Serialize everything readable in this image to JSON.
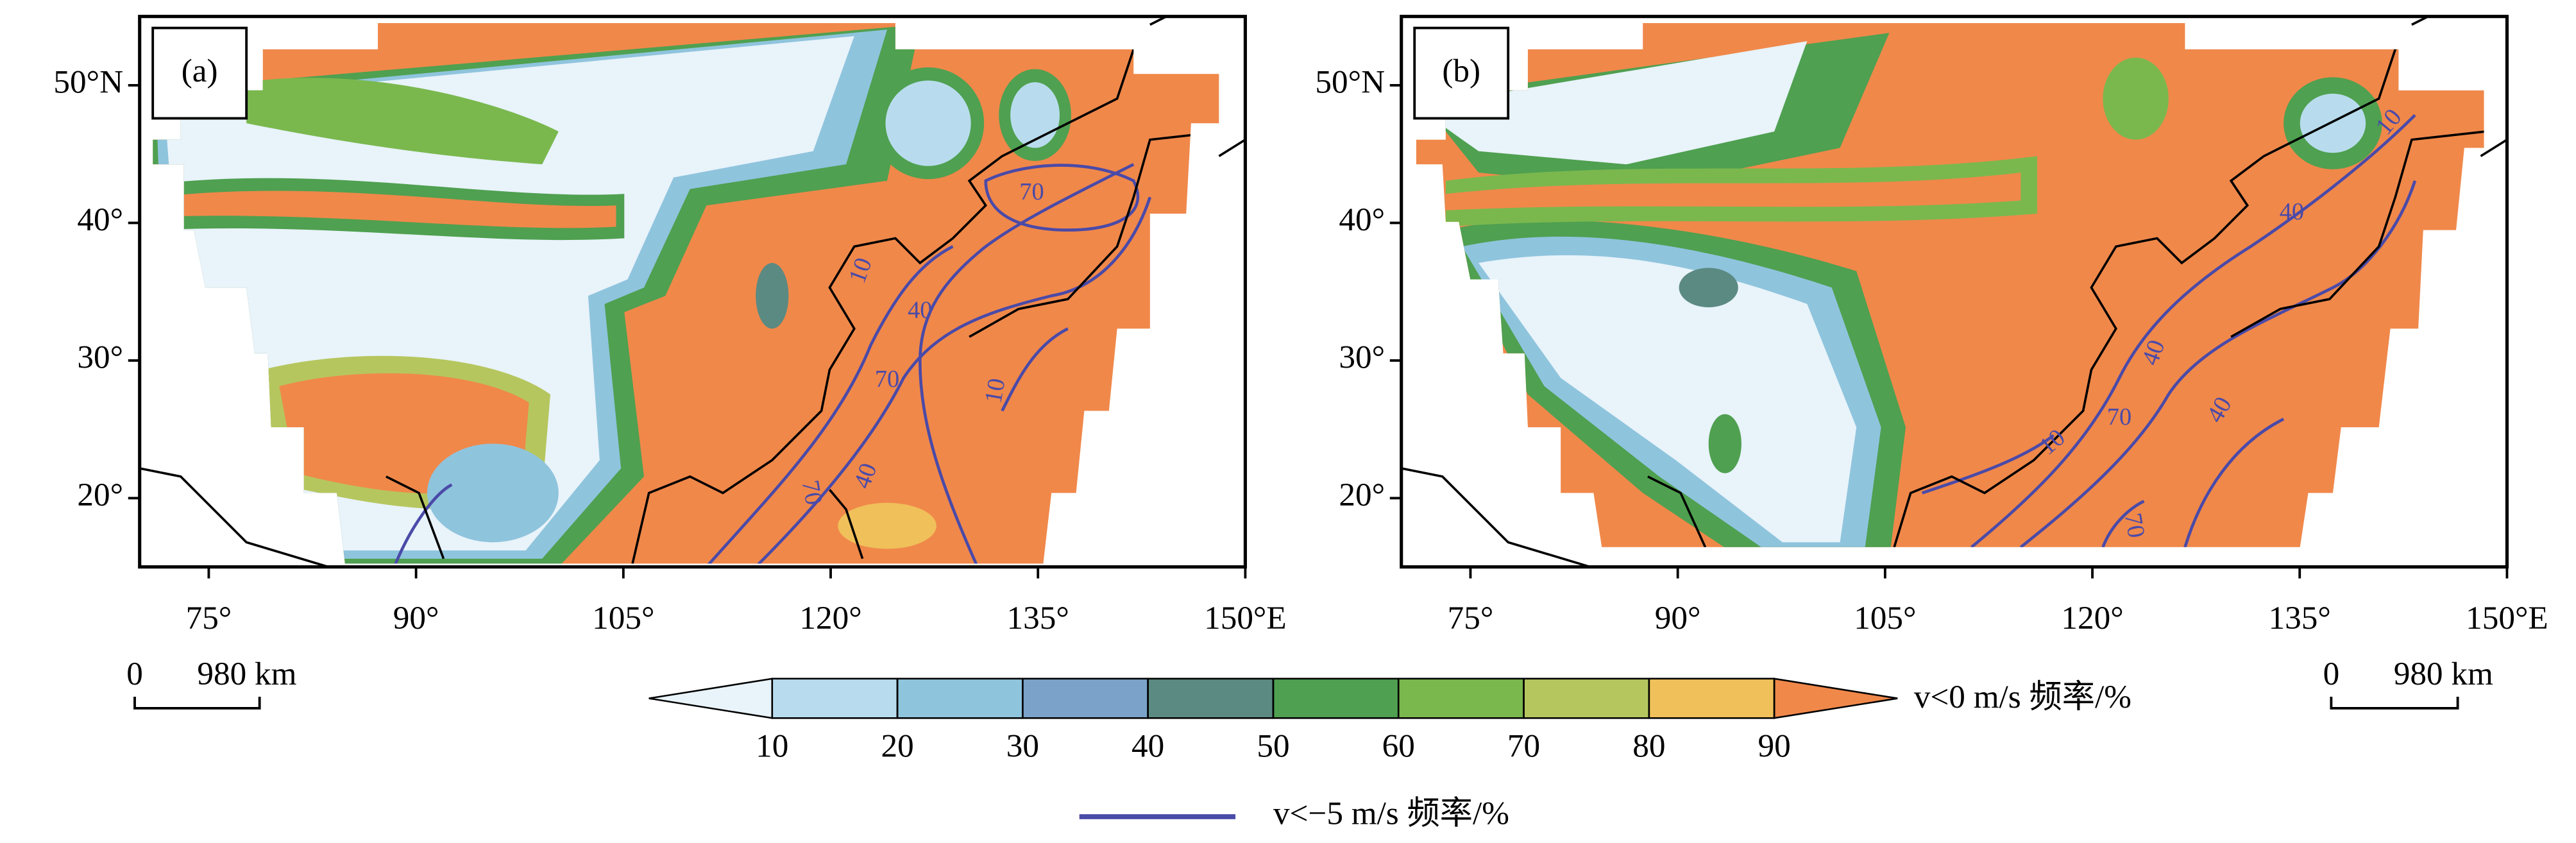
{
  "map": {
    "xlim": [
      70,
      150
    ],
    "ylim": [
      15,
      55
    ],
    "xticks": [
      {
        "value": 75,
        "label": "75°"
      },
      {
        "value": 90,
        "label": "90°"
      },
      {
        "value": 105,
        "label": "105°"
      },
      {
        "value": 120,
        "label": "120°"
      },
      {
        "value": 135,
        "label": "135°"
      },
      {
        "value": 150,
        "label": "150°E"
      }
    ],
    "yticks": [
      {
        "value": 20,
        "label": "20°"
      },
      {
        "value": 30,
        "label": "30°"
      },
      {
        "value": 40,
        "label": "40°"
      },
      {
        "value": 50,
        "label": "50°N"
      }
    ],
    "panels": [
      {
        "label": "(a)",
        "contour_labels": [
          "10",
          "70",
          "40",
          "70",
          "10",
          "70",
          "40"
        ]
      },
      {
        "label": "(b)",
        "contour_labels": [
          "10",
          "40",
          "40",
          "70",
          "10",
          "40",
          "70"
        ]
      }
    ],
    "scale_bar": {
      "start": "0",
      "length_label": "980 km"
    }
  },
  "colorbar": {
    "ticks": [
      10,
      20,
      30,
      40,
      50,
      60,
      70,
      80,
      90
    ],
    "colors": [
      "#e8f3fa",
      "#b8dced",
      "#8fc4dd",
      "#7ba3c9",
      "#5b8a82",
      "#4fa050",
      "#7ab84e",
      "#b6c65e",
      "#f0c05a",
      "#f0884a"
    ],
    "label": "v<0 m/s 频率/%"
  },
  "contour_legend": {
    "label": "v<−5 m/s 频率/%",
    "color": "#4a4aa8"
  }
}
